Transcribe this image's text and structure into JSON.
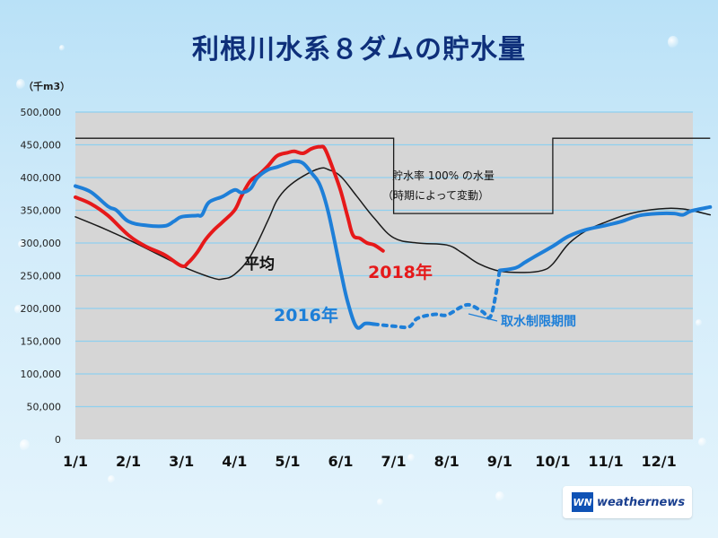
{
  "chart_data": {
    "type": "line",
    "title": "利根川水系８ダムの貯水量",
    "unit_label": "（千m3）",
    "ylim": [
      0,
      500000
    ],
    "yticks": [
      0,
      50000,
      100000,
      150000,
      200000,
      250000,
      300000,
      350000,
      400000,
      450000,
      500000
    ],
    "xticks": [
      "1/1",
      "2/1",
      "3/1",
      "4/1",
      "5/1",
      "6/1",
      "7/1",
      "8/1",
      "9/1",
      "10/1",
      "11/1",
      "12/1"
    ],
    "grid": true,
    "colors": {
      "2016": "#1e7fd8",
      "2018": "#e6191a",
      "average": "#1a1a1a",
      "capacity": "#1a1a1a",
      "plot_bg": "#d6d6d6",
      "grid": "#8fd0ef"
    },
    "series": [
      {
        "name": "平均",
        "label": "平均",
        "points": [
          [
            "01-01",
            340000
          ],
          [
            "01-15",
            325000
          ],
          [
            "02-01",
            305000
          ],
          [
            "02-15",
            285000
          ],
          [
            "03-01",
            265000
          ],
          [
            "03-10",
            255000
          ],
          [
            "03-20",
            246000
          ],
          [
            "03-25",
            245000
          ],
          [
            "04-01",
            252000
          ],
          [
            "04-10",
            280000
          ],
          [
            "04-20",
            335000
          ],
          [
            "04-25",
            365000
          ],
          [
            "05-01",
            385000
          ],
          [
            "05-10",
            402000
          ],
          [
            "05-20",
            414000
          ],
          [
            "05-25",
            412000
          ],
          [
            "06-01",
            402000
          ],
          [
            "06-10",
            372000
          ],
          [
            "06-20",
            338000
          ],
          [
            "07-01",
            308000
          ],
          [
            "07-15",
            300000
          ],
          [
            "08-01",
            297000
          ],
          [
            "08-10",
            285000
          ],
          [
            "08-20",
            268000
          ],
          [
            "09-01",
            257000
          ],
          [
            "09-15",
            255000
          ],
          [
            "09-25",
            258000
          ],
          [
            "10-01",
            268000
          ],
          [
            "10-10",
            298000
          ],
          [
            "10-20",
            318000
          ],
          [
            "11-01",
            332000
          ],
          [
            "11-15",
            345000
          ],
          [
            "12-01",
            352000
          ],
          [
            "12-15",
            352000
          ],
          [
            "12-31",
            343000
          ]
        ]
      },
      {
        "name": "2018年",
        "label": "2018年",
        "points": [
          [
            "01-01",
            370000
          ],
          [
            "01-10",
            360000
          ],
          [
            "01-20",
            342000
          ],
          [
            "02-01",
            312000
          ],
          [
            "02-10",
            295000
          ],
          [
            "02-20",
            282000
          ],
          [
            "03-01",
            265000
          ],
          [
            "03-05",
            270000
          ],
          [
            "03-10",
            285000
          ],
          [
            "03-15",
            305000
          ],
          [
            "03-20",
            320000
          ],
          [
            "03-25",
            332000
          ],
          [
            "04-01",
            350000
          ],
          [
            "04-05",
            372000
          ],
          [
            "04-10",
            395000
          ],
          [
            "04-15",
            405000
          ],
          [
            "04-20",
            418000
          ],
          [
            "04-25",
            433000
          ],
          [
            "05-01",
            438000
          ],
          [
            "05-05",
            440000
          ],
          [
            "05-10",
            437000
          ],
          [
            "05-15",
            444000
          ],
          [
            "05-20",
            447000
          ],
          [
            "05-23",
            443000
          ],
          [
            "05-28",
            410000
          ],
          [
            "06-01",
            380000
          ],
          [
            "06-05",
            340000
          ],
          [
            "06-08",
            312000
          ],
          [
            "06-12",
            307000
          ],
          [
            "06-16",
            300000
          ],
          [
            "06-20",
            297000
          ],
          [
            "06-25",
            288000
          ]
        ]
      },
      {
        "name": "2016年",
        "label": "2016年",
        "points": [
          [
            "01-01",
            387000
          ],
          [
            "01-10",
            378000
          ],
          [
            "01-20",
            356000
          ],
          [
            "01-25",
            350000
          ],
          [
            "02-01",
            333000
          ],
          [
            "02-10",
            327000
          ],
          [
            "02-20",
            326000
          ],
          [
            "02-25",
            333000
          ],
          [
            "03-01",
            340000
          ],
          [
            "03-10",
            342000
          ],
          [
            "03-13",
            343000
          ],
          [
            "03-17",
            362000
          ],
          [
            "03-25",
            371000
          ],
          [
            "04-01",
            381000
          ],
          [
            "04-05",
            377000
          ],
          [
            "04-10",
            383000
          ],
          [
            "04-14",
            400000
          ],
          [
            "04-20",
            412000
          ],
          [
            "04-25",
            416000
          ],
          [
            "05-01",
            422000
          ],
          [
            "05-05",
            425000
          ],
          [
            "05-10",
            422000
          ],
          [
            "05-15",
            407000
          ],
          [
            "05-20",
            388000
          ],
          [
            "05-25",
            345000
          ],
          [
            "06-01",
            258000
          ],
          [
            "06-05",
            210000
          ],
          [
            "06-10",
            172000
          ],
          [
            "06-15",
            177000
          ],
          [
            "06-20",
            176000
          ],
          [
            "07-01",
            173000
          ],
          [
            "07-10",
            172000
          ],
          [
            "07-15",
            185000
          ],
          [
            "07-25",
            191000
          ],
          [
            "08-01",
            190000
          ],
          [
            "08-10",
            203000
          ],
          [
            "08-15",
            205000
          ],
          [
            "08-22",
            195000
          ],
          [
            "08-27",
            190000
          ],
          [
            "09-01",
            258000
          ],
          [
            "09-10",
            262000
          ],
          [
            "09-15",
            270000
          ],
          [
            "09-20",
            278000
          ],
          [
            "10-01",
            295000
          ],
          [
            "10-10",
            310000
          ],
          [
            "10-20",
            320000
          ],
          [
            "11-01",
            327000
          ],
          [
            "11-10",
            333000
          ],
          [
            "11-20",
            342000
          ],
          [
            "12-01",
            345000
          ],
          [
            "12-10",
            345000
          ],
          [
            "12-15",
            343000
          ],
          [
            "12-20",
            349000
          ],
          [
            "12-31",
            355000
          ]
        ],
        "restriction_period": [
          "06-20",
          "09-01"
        ]
      }
    ],
    "capacity": {
      "label_line1": "貯水率 100% の水量",
      "label_line2": "（時期によって変動）",
      "steps": [
        {
          "from": "01-01",
          "to": "06-30",
          "value": 460000
        },
        {
          "from": "07-01",
          "to": "09-30",
          "value": 345000
        },
        {
          "from": "10-01",
          "to": "12-31",
          "value": 460000
        }
      ]
    },
    "annotations": {
      "restriction": "取水制限期間"
    }
  },
  "logo": {
    "mark": "WN",
    "text": "weathernews"
  }
}
